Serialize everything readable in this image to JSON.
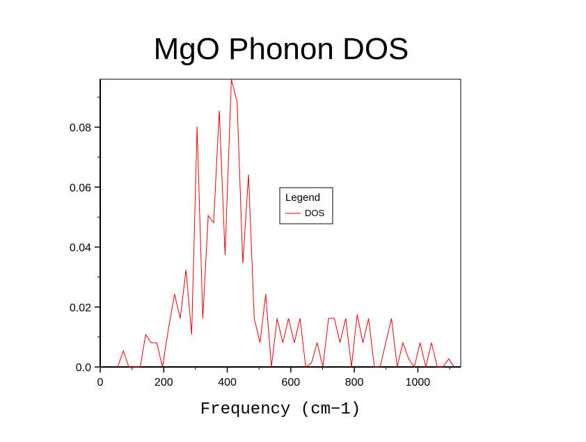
{
  "chart_data": {
    "type": "line",
    "title": "MgO Phonon DOS",
    "xlabel": "Frequency (cm−1)",
    "ylabel": "",
    "xlim": [
      0,
      1135
    ],
    "ylim": [
      0,
      0.096
    ],
    "xticks": [
      0,
      200,
      400,
      600,
      800,
      1000
    ],
    "xtick_labels": [
      "0",
      "200",
      "400",
      "600",
      "800",
      "1000"
    ],
    "yticks": [
      0.0,
      0.02,
      0.04,
      0.06,
      0.08
    ],
    "ytick_labels": [
      "0.0",
      "0.02",
      "0.04",
      "0.06",
      "0.08"
    ],
    "legend": {
      "title": "Legend",
      "position": "center-right"
    },
    "series": [
      {
        "name": "DOS",
        "color": "#e00000",
        "x": [
          55,
          73,
          90,
          126,
          143,
          160,
          178,
          196,
          216,
          234,
          252,
          270,
          288,
          305,
          323,
          340,
          357,
          375,
          393,
          413,
          431,
          449,
          467,
          485,
          503,
          521,
          539,
          557,
          575,
          593,
          611,
          629,
          647,
          665,
          683,
          701,
          719,
          737,
          755,
          773,
          791,
          809,
          827,
          845,
          863,
          881,
          899,
          917,
          935,
          953,
          971,
          989,
          1007,
          1025,
          1043,
          1061,
          1079,
          1097,
          1115
        ],
        "values": [
          0.0,
          0.0054,
          0.0,
          0.0,
          0.0108,
          0.0081,
          0.0081,
          0.0,
          0.0135,
          0.0243,
          0.0162,
          0.0324,
          0.0108,
          0.0802,
          0.0162,
          0.0505,
          0.0481,
          0.0855,
          0.0374,
          0.096,
          0.0883,
          0.0346,
          0.0642,
          0.0163,
          0.0081,
          0.0243,
          0.0,
          0.0162,
          0.0081,
          0.0162,
          0.0081,
          0.0162,
          0.0,
          0.0013,
          0.0081,
          0.0,
          0.0162,
          0.0162,
          0.0081,
          0.0162,
          0.0,
          0.0175,
          0.0081,
          0.0162,
          0.0,
          0.0,
          0.0081,
          0.0162,
          0.0,
          0.0081,
          0.0027,
          0.0,
          0.0081,
          0.0,
          0.0081,
          0.0,
          0.0,
          0.0027,
          0.0
        ]
      }
    ]
  }
}
